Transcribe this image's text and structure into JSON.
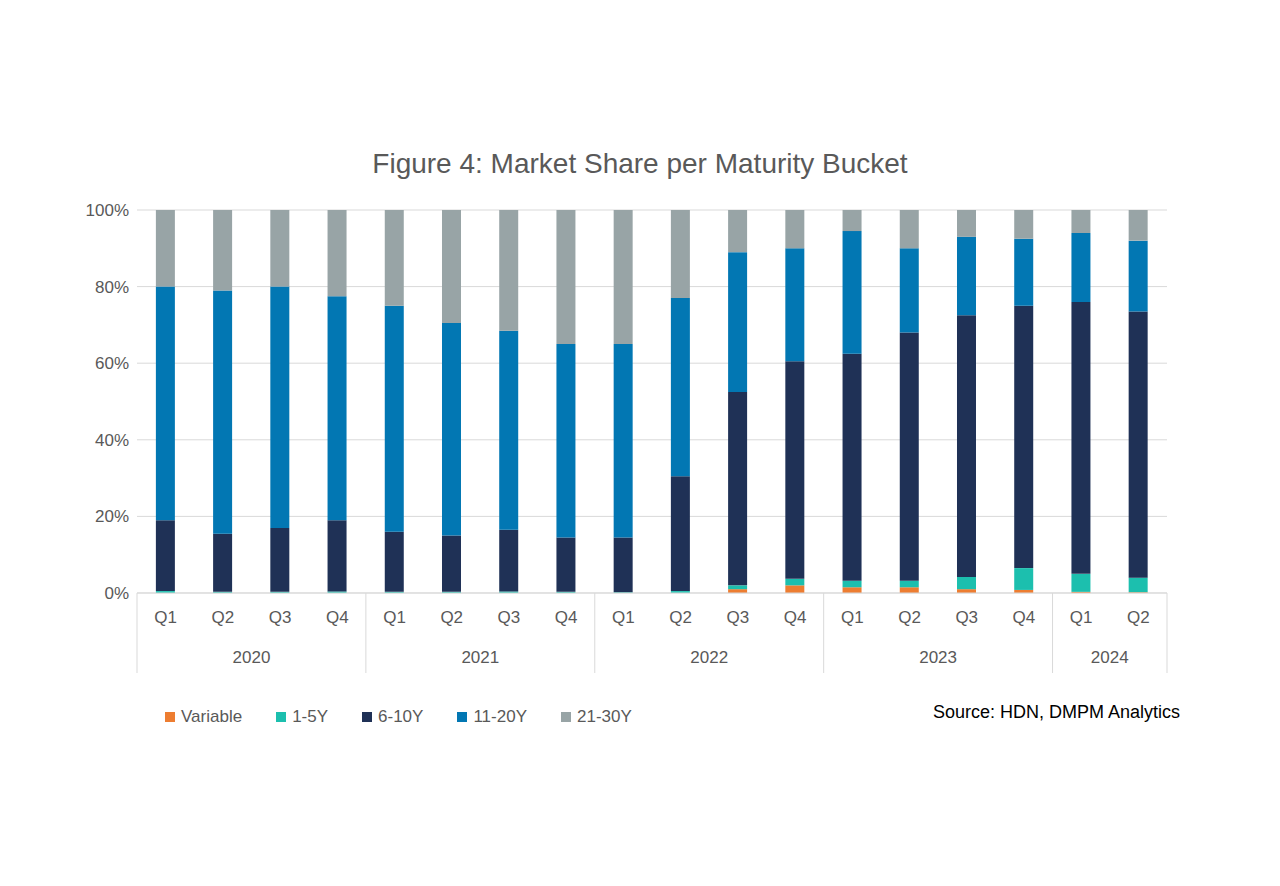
{
  "chart_data": {
    "type": "bar",
    "title": "Figure 4: Market Share per Maturity Bucket",
    "source": "Source: HDN, DMPM Analytics",
    "stacked": true,
    "grid": true,
    "legend": "bottom",
    "categories": [
      "Q1",
      "Q2",
      "Q3",
      "Q4",
      "Q1",
      "Q2",
      "Q3",
      "Q4",
      "Q1",
      "Q2",
      "Q3",
      "Q4",
      "Q1",
      "Q2",
      "Q3",
      "Q4",
      "Q1",
      "Q2"
    ],
    "groups": [
      {
        "label": "2020",
        "count": 4
      },
      {
        "label": "2021",
        "count": 4
      },
      {
        "label": "2022",
        "count": 4
      },
      {
        "label": "2023",
        "count": 4
      },
      {
        "label": "2024",
        "count": 2
      }
    ],
    "ylim": [
      0,
      100
    ],
    "yticks": [
      {
        "value": 0,
        "label": "0%"
      },
      {
        "value": 20,
        "label": "20%"
      },
      {
        "value": 40,
        "label": "40%"
      },
      {
        "value": 60,
        "label": "60%"
      },
      {
        "value": 80,
        "label": "80%"
      },
      {
        "value": 100,
        "label": "100%"
      }
    ],
    "series": [
      {
        "name": "Variable",
        "color": "#ed7d31",
        "values": [
          0,
          0,
          0,
          0,
          0,
          0,
          0,
          0,
          0,
          0,
          1,
          2,
          1.5,
          1.5,
          1,
          0.8,
          0.3,
          0.2
        ]
      },
      {
        "name": "1-5Y",
        "color": "#1cbfae",
        "values": [
          0.5,
          0.3,
          0.3,
          0.4,
          0.3,
          0.3,
          0.4,
          0.3,
          0.2,
          0.5,
          1,
          1.7,
          1.7,
          1.7,
          3.2,
          5.7,
          4.7,
          3.8
        ]
      },
      {
        "name": "6-10Y",
        "color": "#1f3156",
        "values": [
          18.5,
          15.2,
          16.7,
          18.6,
          15.7,
          14.7,
          16.1,
          14.2,
          14.3,
          30,
          50.5,
          56.8,
          59.3,
          64.8,
          68.3,
          68.5,
          71,
          69.5
        ]
      },
      {
        "name": "11-20Y",
        "color": "#0277b3",
        "values": [
          61,
          63.5,
          63,
          58.5,
          59,
          55.5,
          52,
          50.5,
          50.5,
          46.5,
          36.5,
          29.5,
          32,
          22,
          20.5,
          17.5,
          18,
          18.5
        ]
      },
      {
        "name": "21-30Y",
        "color": "#98a4a6",
        "values": [
          20,
          21,
          20,
          22.5,
          25,
          29.5,
          31.5,
          35,
          35,
          23,
          11,
          10,
          5.5,
          10,
          7,
          7.5,
          6,
          8
        ]
      }
    ]
  }
}
